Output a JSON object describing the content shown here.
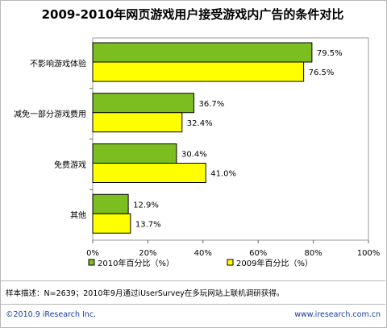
{
  "chart_data": {
    "type": "bar",
    "orientation": "horizontal",
    "title": "2009-2010年网页游戏用户接受游戏内广告的条件对比",
    "categories": [
      "不影响游戏体验",
      "减免一部分游戏费用",
      "免费游戏",
      "其他"
    ],
    "series": [
      {
        "name": "2010年百分比（%）",
        "color": "#7cbd1f",
        "values": [
          79.5,
          36.7,
          30.4,
          12.9
        ],
        "labels": [
          "79.5%",
          "36.7%",
          "30.4%",
          "12.9%"
        ]
      },
      {
        "name": "2009年百分比（%）",
        "color": "#ffff00",
        "values": [
          76.5,
          32.4,
          41.0,
          13.7
        ],
        "labels": [
          "76.5%",
          "32.4%",
          "41.0%",
          "13.7%"
        ]
      }
    ],
    "xlim": [
      0,
      100
    ],
    "xticks": [
      0,
      20,
      40,
      60,
      80,
      100
    ],
    "xtick_labels": [
      "0%",
      "20%",
      "40%",
      "60%",
      "80%",
      "100%"
    ],
    "grid": false,
    "legend_position": "bottom"
  },
  "note": "样本描述：N=2639；2010年9月通过iUserSurvey在多玩网站上联机调研获得。",
  "footer": {
    "copyright": "©2010.9 iResearch Inc.",
    "website": "www.iresearch.com.cn"
  }
}
